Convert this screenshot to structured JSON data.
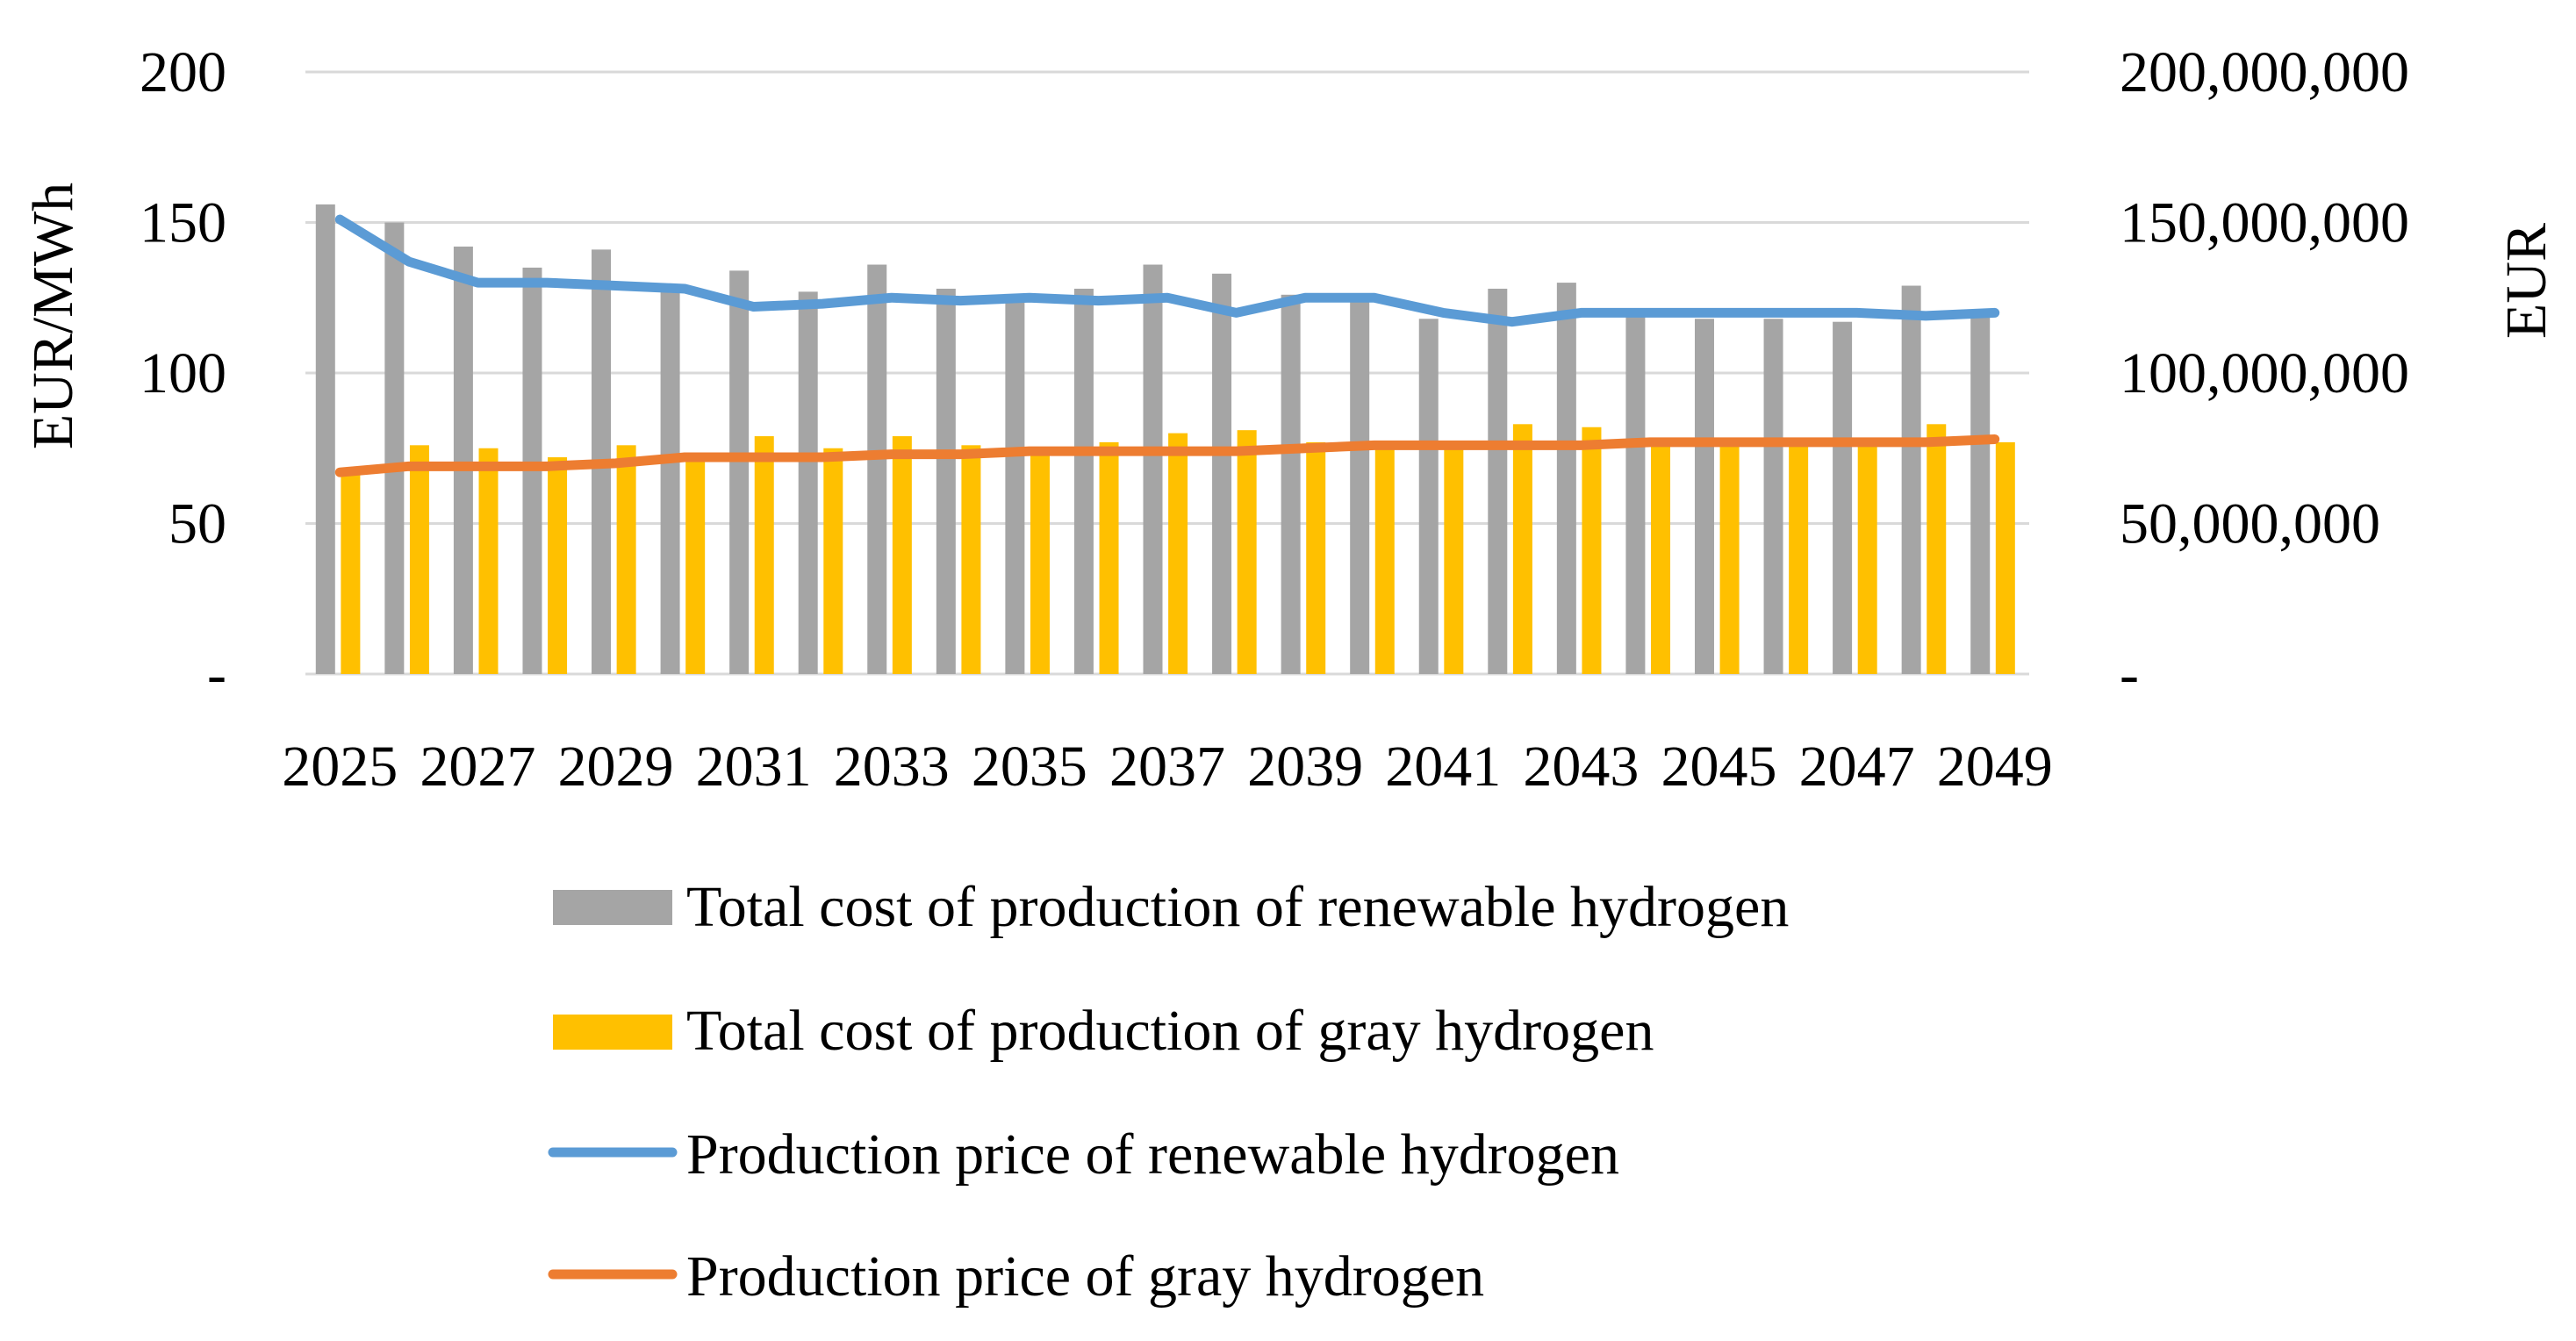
{
  "chart_data": {
    "type": "bar+line",
    "title": "",
    "xlabel": "",
    "ylabel_left": "EUR/MWh",
    "ylabel_right": "EUR",
    "ylim_left": [
      0,
      200
    ],
    "ylim_right": [
      0,
      200000000
    ],
    "left_ticks": [
      "-",
      "50",
      "100",
      "150",
      "200"
    ],
    "right_ticks": [
      "-",
      "50,000,000",
      "100,000,000",
      "150,000,000",
      "200,000,000"
    ],
    "categories": [
      "2025",
      "2026",
      "2027",
      "2028",
      "2029",
      "2030",
      "2031",
      "2032",
      "2033",
      "2034",
      "2035",
      "2036",
      "2037",
      "2038",
      "2039",
      "2040",
      "2041",
      "2042",
      "2043",
      "2044",
      "2045",
      "2046",
      "2047",
      "2048",
      "2049"
    ],
    "x_tick_labels": [
      "2025",
      "2027",
      "2029",
      "2031",
      "2033",
      "2035",
      "2037",
      "2039",
      "2041",
      "2043",
      "2045",
      "2047",
      "2049"
    ],
    "grid": true,
    "legend_position": "bottom",
    "series": [
      {
        "name": "Total cost of production of renewable hydrogen",
        "kind": "bar",
        "axis": "right",
        "color": "#a5a5a5",
        "values": [
          156000000,
          150000000,
          142000000,
          135000000,
          141000000,
          129000000,
          134000000,
          127000000,
          136000000,
          128000000,
          125000000,
          128000000,
          136000000,
          133000000,
          126000000,
          124000000,
          118000000,
          128000000,
          130000000,
          120000000,
          118000000,
          118000000,
          117000000,
          129000000,
          119000000
        ]
      },
      {
        "name": "Total cost of production of gray hydrogen",
        "kind": "bar",
        "axis": "right",
        "color": "#ffc000",
        "values": [
          68000000,
          76000000,
          75000000,
          72000000,
          76000000,
          73000000,
          79000000,
          75000000,
          79000000,
          76000000,
          74000000,
          77000000,
          80000000,
          81000000,
          77000000,
          76000000,
          76000000,
          83000000,
          82000000,
          77000000,
          77000000,
          77000000,
          77000000,
          83000000,
          77000000
        ]
      },
      {
        "name": "Production price of renewable hydrogen",
        "kind": "line",
        "axis": "left",
        "color": "#5b9bd5",
        "values": [
          151,
          137,
          130,
          130,
          129,
          128,
          122,
          123,
          125,
          124,
          125,
          124,
          125,
          120,
          125,
          125,
          120,
          117,
          120,
          120,
          120,
          120,
          120,
          119,
          120
        ]
      },
      {
        "name": "Production price of gray hydrogen",
        "kind": "line",
        "axis": "left",
        "color": "#ed7d31",
        "values": [
          67,
          69,
          69,
          69,
          70,
          72,
          72,
          72,
          73,
          73,
          74,
          74,
          74,
          74,
          75,
          76,
          76,
          76,
          76,
          77,
          77,
          77,
          77,
          77,
          78
        ]
      }
    ]
  }
}
